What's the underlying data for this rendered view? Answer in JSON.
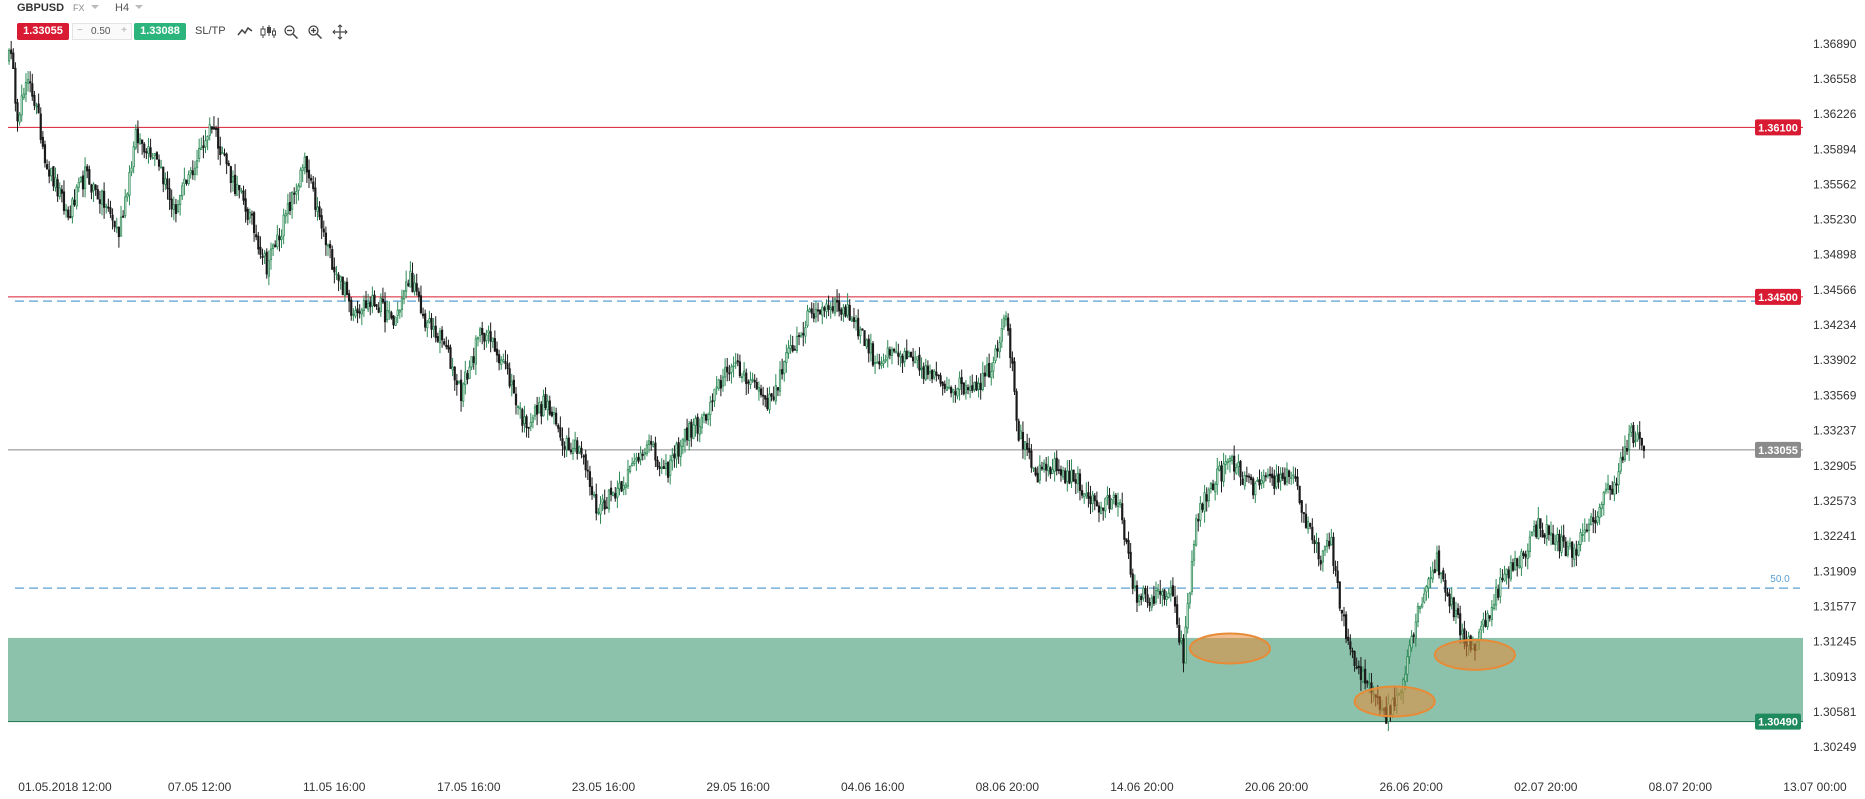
{
  "toolbar": {
    "symbol": "GBPUSD",
    "market": "FX",
    "timeframe": "H4",
    "sell_price": "1.33055",
    "volume": "0.50",
    "minus": "−",
    "plus": "+",
    "buy_price": "1.33088",
    "sltp_label": "SL/TP",
    "icons": [
      "line-chart-icon",
      "candles-icon",
      "zoom-out-icon",
      "zoom-in-icon",
      "crosshair-icon"
    ]
  },
  "colors": {
    "bull_candle": "#2e8b57",
    "bear_candle": "#1a1a1a",
    "resistance_line": "#d81b32",
    "support_zone": "#5fa98a",
    "fib_line": "#5a9fd4",
    "highlight_ellipse": "#e88b36",
    "current_price_line": "#888888",
    "sell": "#d81b32",
    "buy": "#2bb57c"
  },
  "chart_data": {
    "type": "candlestick",
    "symbol": "GBPUSD",
    "timeframe": "H4",
    "ylim": [
      1.3008,
      1.3702
    ],
    "y_ticks": [
      "1.36890",
      "1.36558",
      "1.36226",
      "1.35894",
      "1.35562",
      "1.35230",
      "1.34898",
      "1.34566",
      "1.34234",
      "1.33902",
      "1.33569",
      "1.33237",
      "1.32905",
      "1.32573",
      "1.32241",
      "1.31909",
      "1.31577",
      "1.31245",
      "1.30913",
      "1.30581",
      "1.30249"
    ],
    "x_ticks": [
      "01.05.2018 12:00",
      "07.05 12:00",
      "11.05 16:00",
      "17.05 16:00",
      "23.05 16:00",
      "29.05 16:00",
      "04.06 16:00",
      "08.06 20:00",
      "14.06 20:00",
      "20.06 20:00",
      "26.06 20:00",
      "02.07 20:00",
      "08.07 20:00",
      "13.07 00:00"
    ],
    "anchors": [
      [
        0,
        1.369
      ],
      [
        4,
        1.3625
      ],
      [
        10,
        1.3655
      ],
      [
        18,
        1.3575
      ],
      [
        28,
        1.3525
      ],
      [
        36,
        1.3565
      ],
      [
        46,
        1.3535
      ],
      [
        52,
        1.351
      ],
      [
        60,
        1.36
      ],
      [
        70,
        1.3585
      ],
      [
        78,
        1.353
      ],
      [
        88,
        1.3575
      ],
      [
        96,
        1.3615
      ],
      [
        106,
        1.356
      ],
      [
        114,
        1.3525
      ],
      [
        122,
        1.348
      ],
      [
        130,
        1.352
      ],
      [
        140,
        1.3575
      ],
      [
        150,
        1.35
      ],
      [
        162,
        1.344
      ],
      [
        174,
        1.3445
      ],
      [
        182,
        1.3425
      ],
      [
        190,
        1.347
      ],
      [
        196,
        1.343
      ],
      [
        206,
        1.3405
      ],
      [
        214,
        1.336
      ],
      [
        224,
        1.342
      ],
      [
        234,
        1.339
      ],
      [
        244,
        1.333
      ],
      [
        254,
        1.335
      ],
      [
        262,
        1.3315
      ],
      [
        270,
        1.331
      ],
      [
        278,
        1.325
      ],
      [
        286,
        1.3265
      ],
      [
        294,
        1.3285
      ],
      [
        302,
        1.3315
      ],
      [
        310,
        1.328
      ],
      [
        320,
        1.332
      ],
      [
        330,
        1.3335
      ],
      [
        340,
        1.3385
      ],
      [
        350,
        1.3375
      ],
      [
        360,
        1.335
      ],
      [
        370,
        1.34
      ],
      [
        380,
        1.3435
      ],
      [
        390,
        1.3445
      ],
      [
        400,
        1.343
      ],
      [
        410,
        1.339
      ],
      [
        420,
        1.3395
      ],
      [
        430,
        1.3385
      ],
      [
        440,
        1.337
      ],
      [
        450,
        1.3365
      ],
      [
        460,
        1.337
      ],
      [
        466,
        1.339
      ],
      [
        472,
        1.344
      ],
      [
        478,
        1.332
      ],
      [
        486,
        1.328
      ],
      [
        494,
        1.329
      ],
      [
        506,
        1.3275
      ],
      [
        516,
        1.325
      ],
      [
        526,
        1.326
      ],
      [
        532,
        1.317
      ],
      [
        542,
        1.3165
      ],
      [
        550,
        1.317
      ],
      [
        556,
        1.311
      ],
      [
        562,
        1.324
      ],
      [
        570,
        1.3275
      ],
      [
        578,
        1.3295
      ],
      [
        588,
        1.327
      ],
      [
        598,
        1.3275
      ],
      [
        608,
        1.3285
      ],
      [
        614,
        1.3235
      ],
      [
        620,
        1.3205
      ],
      [
        626,
        1.3215
      ],
      [
        632,
        1.314
      ],
      [
        638,
        1.3095
      ],
      [
        646,
        1.308
      ],
      [
        652,
        1.3055
      ],
      [
        658,
        1.3075
      ],
      [
        664,
        1.313
      ],
      [
        670,
        1.3175
      ],
      [
        676,
        1.32
      ],
      [
        682,
        1.3165
      ],
      [
        688,
        1.313
      ],
      [
        694,
        1.312
      ],
      [
        700,
        1.315
      ],
      [
        706,
        1.318
      ],
      [
        716,
        1.3205
      ],
      [
        724,
        1.3235
      ],
      [
        732,
        1.322
      ],
      [
        740,
        1.321
      ],
      [
        748,
        1.323
      ],
      [
        756,
        1.3265
      ],
      [
        760,
        1.3275
      ],
      [
        768,
        1.332
      ],
      [
        774,
        1.3305
      ]
    ],
    "current_price": 1.33055,
    "horizontal_levels": [
      {
        "price": 1.361,
        "label": "1.36100",
        "style": "resistance"
      },
      {
        "price": 1.345,
        "label": "1.34500",
        "style": "resistance"
      },
      {
        "price": 1.3049,
        "label": "1.30490",
        "style": "zone-bottom"
      }
    ],
    "fib_levels": [
      {
        "price": 1.3446,
        "label": ""
      },
      {
        "price": 1.3175,
        "label": "50.0"
      }
    ],
    "support_zone": {
      "from": 1.3049,
      "to": 1.3128
    },
    "highlights": [
      {
        "x_index": 578,
        "price": 1.3118
      },
      {
        "x_index": 656,
        "price": 1.3068
      },
      {
        "x_index": 694,
        "price": 1.3112
      }
    ],
    "current_price_label": "1.33055"
  }
}
